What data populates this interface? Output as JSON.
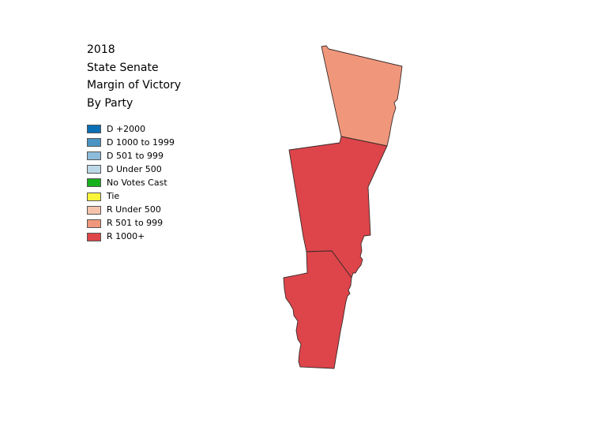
{
  "title": {
    "lines": [
      "2018",
      "State Senate",
      "Margin of Victory",
      "By Party"
    ]
  },
  "legend": {
    "items": [
      {
        "label": "D +2000",
        "color": "#0a6fb4"
      },
      {
        "label": "D 1000 to 1999",
        "color": "#4a94c3"
      },
      {
        "label": "D 501 to 999",
        "color": "#8dbcdb"
      },
      {
        "label": "D Under 500",
        "color": "#bcd8e8"
      },
      {
        "label": "No Votes Cast",
        "color": "#17b01e"
      },
      {
        "label": "Tie",
        "color": "#fbf53a"
      },
      {
        "label": "R Under 500",
        "color": "#f5c3ac"
      },
      {
        "label": "R 501 to 999",
        "color": "#f0977b"
      },
      {
        "label": "R 1000+",
        "color": "#dd454a"
      }
    ]
  },
  "map": {
    "districts": [
      {
        "category": "R 501 to 999",
        "color": "#f0977b"
      },
      {
        "category": "R 1000+",
        "color": "#dd454a"
      },
      {
        "category": "R 1000+",
        "color": "#dd454a"
      }
    ]
  }
}
